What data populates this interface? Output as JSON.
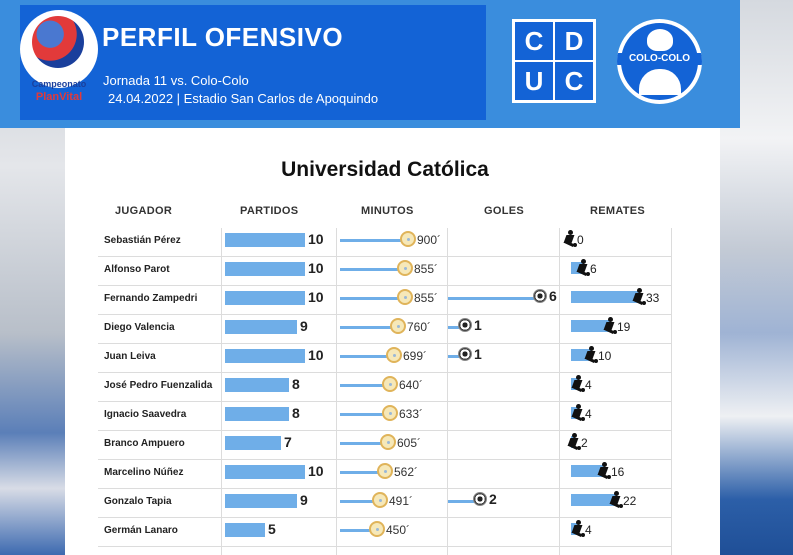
{
  "header": {
    "title": "PERFIL OFENSIVO",
    "subtitle_line1": "Jornada 11 vs. Colo-Colo",
    "subtitle_line2": "24.04.2022 | Estadio San Carlos de Apoquindo",
    "logo_line1": "Campeonato",
    "logo_line2": "PlanVital",
    "crest_home": [
      "C",
      "D",
      "U",
      "C"
    ],
    "crest_away_text": "COLO-COLO"
  },
  "colors": {
    "header_blue": "#1363d6",
    "header_light": "#3a8ddd",
    "bar_blue": "#6faee8"
  },
  "chart_data": {
    "type": "table",
    "title": "Universidad Católica",
    "columns": [
      "JUGADOR",
      "PARTIDOS",
      "MINUTOS",
      "GOLES",
      "REMATES"
    ],
    "rows": [
      {
        "name": "Sebastián Pérez",
        "partidos": 10,
        "minutos": "900´",
        "goles": null,
        "remates": 0
      },
      {
        "name": "Alfonso Parot",
        "partidos": 10,
        "minutos": "855´",
        "goles": null,
        "remates": 6
      },
      {
        "name": "Fernando Zampedri",
        "partidos": 10,
        "minutos": "855´",
        "goles": 6,
        "remates": 33
      },
      {
        "name": "Diego Valencia",
        "partidos": 9,
        "minutos": "760´",
        "goles": 1,
        "remates": 19
      },
      {
        "name": "Juan Leiva",
        "partidos": 10,
        "minutos": "699´",
        "goles": 1,
        "remates": 10
      },
      {
        "name": "José Pedro Fuenzalida",
        "partidos": 8,
        "minutos": "640´",
        "goles": null,
        "remates": 4
      },
      {
        "name": "Ignacio Saavedra",
        "partidos": 8,
        "minutos": "633´",
        "goles": null,
        "remates": 4
      },
      {
        "name": "Branco Ampuero",
        "partidos": 7,
        "minutos": "605´",
        "goles": null,
        "remates": 2
      },
      {
        "name": "Marcelino Núñez",
        "partidos": 10,
        "minutos": "562´",
        "goles": null,
        "remates": 16
      },
      {
        "name": "Gonzalo Tapia",
        "partidos": 9,
        "minutos": "491´",
        "goles": 2,
        "remates": 22
      },
      {
        "name": "Germán Lanaro",
        "partidos": 5,
        "minutos": "450´",
        "goles": null,
        "remates": 4
      }
    ]
  }
}
